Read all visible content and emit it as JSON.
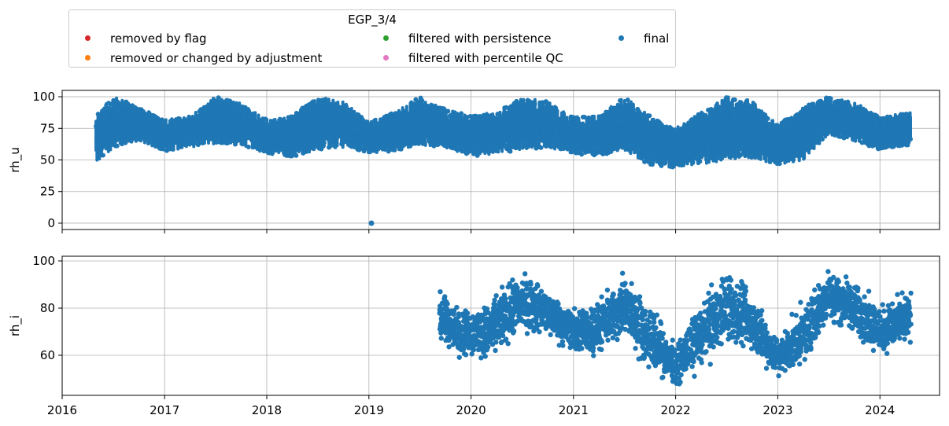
{
  "chart_data": {
    "type": "scatter",
    "legend": {
      "title": "EGP_3/4",
      "placement": "top",
      "entries": [
        {
          "label": "removed by flag",
          "color": "#d62728"
        },
        {
          "label": "removed or changed by adjustment",
          "color": "#ff7f0e"
        },
        {
          "label": "filtered with persistence",
          "color": "#2ca02c"
        },
        {
          "label": "filtered with percentile QC",
          "color": "#e377c2"
        },
        {
          "label": "final",
          "color": "#1f77b4"
        }
      ]
    },
    "x_ticks": [
      "2016",
      "2017",
      "2018",
      "2019",
      "2020",
      "2021",
      "2022",
      "2023",
      "2024"
    ],
    "x_range": [
      "2016-01-01",
      "2024-08-01"
    ],
    "grid": true,
    "panels": [
      {
        "ylabel": "rh_u",
        "ylim": [
          -5,
          105
        ],
        "yticks": [
          0,
          25,
          50,
          75,
          100
        ],
        "outlier": {
          "date": "2019-01-10",
          "value": 0
        },
        "envelope": [
          {
            "date": "2016-05-01",
            "upper": 86,
            "lower": 46
          },
          {
            "date": "2016-07-01",
            "upper": 100,
            "lower": 60
          },
          {
            "date": "2016-10-01",
            "upper": 92,
            "lower": 65
          },
          {
            "date": "2017-01-01",
            "upper": 82,
            "lower": 57
          },
          {
            "date": "2017-04-01",
            "upper": 84,
            "lower": 60
          },
          {
            "date": "2017-07-01",
            "upper": 100,
            "lower": 63
          },
          {
            "date": "2017-10-01",
            "upper": 95,
            "lower": 62
          },
          {
            "date": "2018-01-01",
            "upper": 82,
            "lower": 55
          },
          {
            "date": "2018-04-01",
            "upper": 85,
            "lower": 52
          },
          {
            "date": "2018-07-01",
            "upper": 100,
            "lower": 58
          },
          {
            "date": "2018-10-01",
            "upper": 96,
            "lower": 60
          },
          {
            "date": "2019-01-01",
            "upper": 80,
            "lower": 55
          },
          {
            "date": "2019-04-01",
            "upper": 88,
            "lower": 57
          },
          {
            "date": "2019-07-01",
            "upper": 100,
            "lower": 62
          },
          {
            "date": "2019-10-01",
            "upper": 90,
            "lower": 60
          },
          {
            "date": "2020-01-01",
            "upper": 85,
            "lower": 53
          },
          {
            "date": "2020-04-01",
            "upper": 88,
            "lower": 55
          },
          {
            "date": "2020-07-01",
            "upper": 100,
            "lower": 58
          },
          {
            "date": "2020-10-01",
            "upper": 96,
            "lower": 60
          },
          {
            "date": "2021-01-01",
            "upper": 84,
            "lower": 55
          },
          {
            "date": "2021-04-01",
            "upper": 85,
            "lower": 53
          },
          {
            "date": "2021-07-01",
            "upper": 100,
            "lower": 57
          },
          {
            "date": "2021-10-01",
            "upper": 85,
            "lower": 46
          },
          {
            "date": "2022-01-01",
            "upper": 75,
            "lower": 44
          },
          {
            "date": "2022-04-01",
            "upper": 88,
            "lower": 46
          },
          {
            "date": "2022-07-01",
            "upper": 100,
            "lower": 50
          },
          {
            "date": "2022-10-01",
            "upper": 97,
            "lower": 52
          },
          {
            "date": "2023-01-01",
            "upper": 78,
            "lower": 46
          },
          {
            "date": "2023-04-01",
            "upper": 92,
            "lower": 50
          },
          {
            "date": "2023-07-01",
            "upper": 100,
            "lower": 70
          },
          {
            "date": "2023-10-01",
            "upper": 96,
            "lower": 65
          },
          {
            "date": "2024-01-01",
            "upper": 84,
            "lower": 58
          },
          {
            "date": "2024-04-20",
            "upper": 88,
            "lower": 62
          }
        ]
      },
      {
        "ylabel": "rh_i",
        "ylim": [
          43,
          102
        ],
        "yticks": [
          60,
          80,
          100
        ],
        "envelope": [
          {
            "date": "2019-09-10",
            "upper": 90,
            "lower": 62
          },
          {
            "date": "2019-12-01",
            "upper": 82,
            "lower": 57
          },
          {
            "date": "2020-03-01",
            "upper": 85,
            "lower": 55
          },
          {
            "date": "2020-07-01",
            "upper": 99,
            "lower": 66
          },
          {
            "date": "2020-10-01",
            "upper": 90,
            "lower": 66
          },
          {
            "date": "2021-01-01",
            "upper": 82,
            "lower": 58
          },
          {
            "date": "2021-04-01",
            "upper": 86,
            "lower": 57
          },
          {
            "date": "2021-07-01",
            "upper": 98,
            "lower": 64
          },
          {
            "date": "2021-10-01",
            "upper": 85,
            "lower": 50
          },
          {
            "date": "2022-01-01",
            "upper": 66,
            "lower": 45
          },
          {
            "date": "2022-04-01",
            "upper": 86,
            "lower": 52
          },
          {
            "date": "2022-07-01",
            "upper": 100,
            "lower": 60
          },
          {
            "date": "2022-10-01",
            "upper": 90,
            "lower": 58
          },
          {
            "date": "2023-01-01",
            "upper": 70,
            "lower": 48
          },
          {
            "date": "2023-04-01",
            "upper": 84,
            "lower": 52
          },
          {
            "date": "2023-07-01",
            "upper": 100,
            "lower": 72
          },
          {
            "date": "2023-10-01",
            "upper": 94,
            "lower": 66
          },
          {
            "date": "2024-01-01",
            "upper": 84,
            "lower": 57
          },
          {
            "date": "2024-04-20",
            "upper": 90,
            "lower": 62
          }
        ]
      }
    ],
    "series_color": "#1f77b4"
  }
}
